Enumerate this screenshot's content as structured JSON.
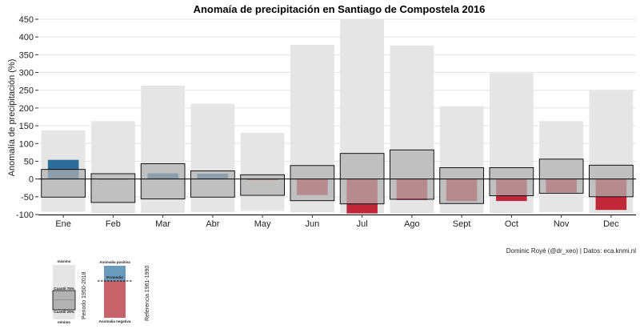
{
  "chart_data": {
    "type": "bar",
    "title": "Anomaía de precipitación en Santiago de Compostela 2016",
    "ylabel": "Anomalía de precipitación (%)",
    "xlabel": "",
    "ylim": [
      -100,
      450
    ],
    "yticks": [
      -100,
      -50,
      0,
      50,
      100,
      150,
      200,
      250,
      300,
      350,
      400,
      450
    ],
    "grid": true,
    "categories": [
      "Ene",
      "Feb",
      "Mar",
      "Abr",
      "May",
      "Jun",
      "Jul",
      "Ago",
      "Sept",
      "Oct",
      "Nov",
      "Dec"
    ],
    "series": [
      {
        "name": "máximo",
        "values": [
          137,
          163,
          263,
          212,
          130,
          378,
          450,
          376,
          205,
          298,
          163,
          250
        ]
      },
      {
        "name": "mínimo",
        "values": [
          -92,
          -96,
          -95,
          -93,
          -90,
          -94,
          -96,
          -96,
          -96,
          -96,
          -93,
          -96
        ]
      },
      {
        "name": "Cuantil 75%",
        "values": [
          27,
          15,
          43,
          23,
          12,
          38,
          72,
          82,
          32,
          32,
          56,
          39
        ]
      },
      {
        "name": "Cuantil 25%",
        "values": [
          -51,
          -66,
          -56,
          -51,
          -46,
          -61,
          -70,
          -57,
          -69,
          -47,
          -40,
          -50
        ]
      },
      {
        "name": "Anomalia",
        "values": [
          54,
          -1,
          16,
          15,
          -3,
          -45,
          -97,
          -59,
          -62,
          -62,
          -38,
          -87
        ]
      }
    ],
    "caption": "Dominic Royé (@dr_xeo) | Datos: eca.knmi.nl",
    "colors": {
      "range": "#e5e5e5",
      "iqr": "#b2b2b2",
      "positive": "#2c6e99",
      "negative": "#c0283a",
      "legend_positive": "#6a9bbd",
      "legend_negative": "#c8636b"
    },
    "legend": {
      "range": {
        "max_label": "máximo",
        "q75_label": "Cuantil 75%",
        "q25_label": "Cuantil 25%",
        "min_label": "mínimo",
        "period_label": "Periodo 1950-2018"
      },
      "anomaly": {
        "positive_label": "Anomalia positiva",
        "mean_label": "Promedio",
        "negative_label": "Anomalia negativa",
        "reference_label": "Referencia 1961-1990"
      }
    }
  }
}
